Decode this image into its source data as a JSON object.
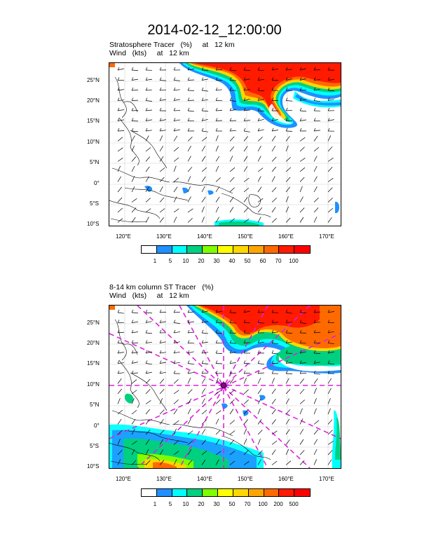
{
  "title": "2014-02-12_12:00:00",
  "panels": [
    {
      "subtitle1": "Stratosphere Tracer   (%)     at   12 km",
      "subtitle2": "Wind   (kts)     at   12 km",
      "lat_labels": [
        "25°N",
        "20°N",
        "15°N",
        "10°N",
        "5°N",
        "0°",
        "5°S",
        "10°S"
      ],
      "lon_labels": [
        "120°E",
        "130°E",
        "140°E",
        "150°E",
        "160°E",
        "170°E"
      ],
      "legend_labels": [
        "1",
        "5",
        "10",
        "20",
        "30",
        "40",
        "50",
        "60",
        "70",
        "100"
      ],
      "legend_colors": [
        "#ffffff",
        "#1e90ff",
        "#00ffff",
        "#00d080",
        "#7fff00",
        "#ffff00",
        "#ffd700",
        "#ffa500",
        "#ff6a00",
        "#ff1a00",
        "#ff0000"
      ]
    },
    {
      "subtitle1": "8-14 km column ST Tracer   (%)",
      "subtitle2": "Wind   (kts)     at   12 km",
      "lat_labels": [
        "25°N",
        "20°N",
        "15°N",
        "10°N",
        "5°N",
        "0°",
        "5°S",
        "10°S"
      ],
      "lon_labels": [
        "120°E",
        "130°E",
        "140°E",
        "150°E",
        "160°E",
        "170°E"
      ],
      "legend_labels": [
        "1",
        "5",
        "10",
        "20",
        "30",
        "50",
        "70",
        "100",
        "200",
        "500"
      ],
      "legend_colors": [
        "#ffffff",
        "#1e90ff",
        "#00ffff",
        "#00d080",
        "#7fff00",
        "#ffff00",
        "#ffd700",
        "#ffa500",
        "#ff6a00",
        "#ff1a00",
        "#ff0000"
      ]
    }
  ]
}
